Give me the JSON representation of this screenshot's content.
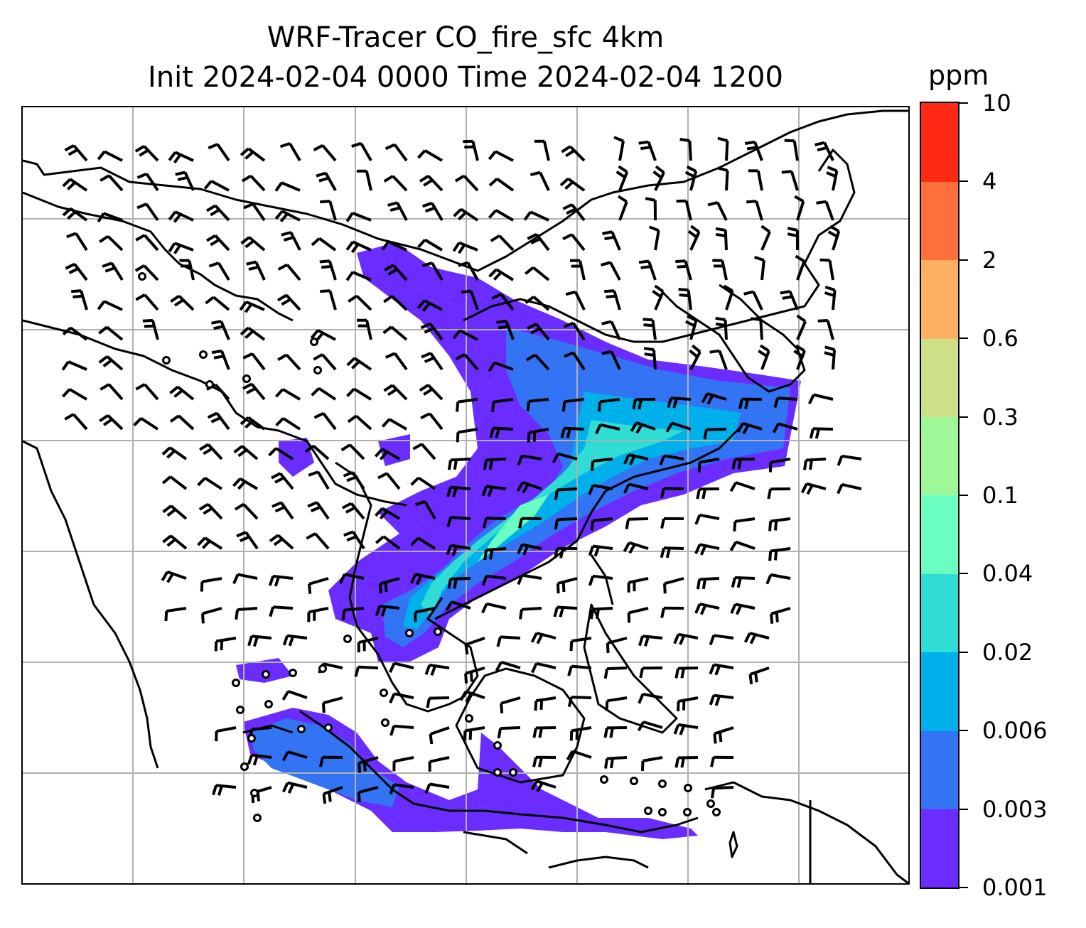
{
  "title": {
    "line1": "WRF-Tracer CO_fire_sfc 4km",
    "line2": "Init 2024-02-04 0000 Time 2024-02-04 1200"
  },
  "colorbar": {
    "unit": "ppm",
    "levels": [
      "0.001",
      "0.003",
      "0.006",
      "0.02",
      "0.04",
      "0.1",
      "0.3",
      "0.6",
      "2",
      "4",
      "10"
    ],
    "colors": [
      "#6a2cff",
      "#3274f4",
      "#00b0ea",
      "#30ddd4",
      "#6afec0",
      "#9ef89a",
      "#cde087",
      "#feb062",
      "#ff703c",
      "#ff2a14"
    ]
  },
  "map": {
    "gridline_color": "#b0b0b0",
    "coastline_color": "#000000",
    "wind_barb_color": "#000000"
  }
}
